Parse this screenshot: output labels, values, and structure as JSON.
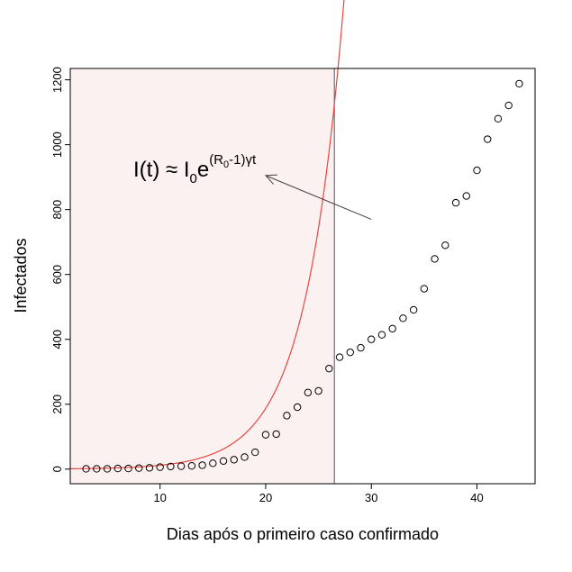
{
  "chart_data": {
    "type": "scatter",
    "title": "",
    "xlabel": "Dias após o primeiro caso confirmado",
    "ylabel": "Infectados",
    "xlim": [
      1.5,
      45.5
    ],
    "ylim": [
      -45,
      1235
    ],
    "x_ticks": [
      10,
      20,
      30,
      40
    ],
    "y_ticks": [
      0,
      200,
      400,
      600,
      800,
      1000,
      1200
    ],
    "grid": false,
    "legend": "none",
    "series": [
      {
        "type": "scatter",
        "marker": "open-circle",
        "color": "#000000",
        "x": [
          3,
          4,
          5,
          6,
          7,
          8,
          9,
          10,
          11,
          12,
          13,
          14,
          15,
          16,
          17,
          18,
          19,
          20,
          21,
          22,
          23,
          24,
          25,
          26,
          27,
          28,
          29,
          30,
          31,
          32,
          33,
          34,
          35,
          36,
          37,
          38,
          39,
          40,
          41,
          42,
          43,
          44
        ],
        "y": [
          1,
          1,
          1,
          2,
          2,
          3,
          4,
          6,
          8,
          9,
          10,
          12,
          18,
          25,
          29,
          37,
          52,
          106,
          108,
          165,
          191,
          236,
          241,
          310,
          345,
          360,
          374,
          400,
          414,
          433,
          465,
          491,
          556,
          648,
          690,
          821,
          842,
          921,
          1017,
          1080,
          1121,
          1188
        ]
      },
      {
        "type": "line",
        "color": "#e8463f",
        "model": "exponential",
        "I0": 0.755,
        "rate": 0.2757,
        "x_range": [
          1.5,
          31.85
        ]
      }
    ],
    "vertical_line": {
      "x": 26.5,
      "color": "#555555"
    },
    "shaded_region": {
      "x_from": 1.5,
      "x_to": 26.5,
      "color": "#fbf1f1"
    },
    "annotation": {
      "base": "I(t) ≈ I",
      "sub0": "0",
      "e": "e",
      "sup_a": "(R",
      "sup_sub": "0",
      "sup_b": "-1)γt",
      "arrow_from": [
        30,
        770
      ],
      "arrow_to": [
        20,
        905
      ]
    }
  }
}
